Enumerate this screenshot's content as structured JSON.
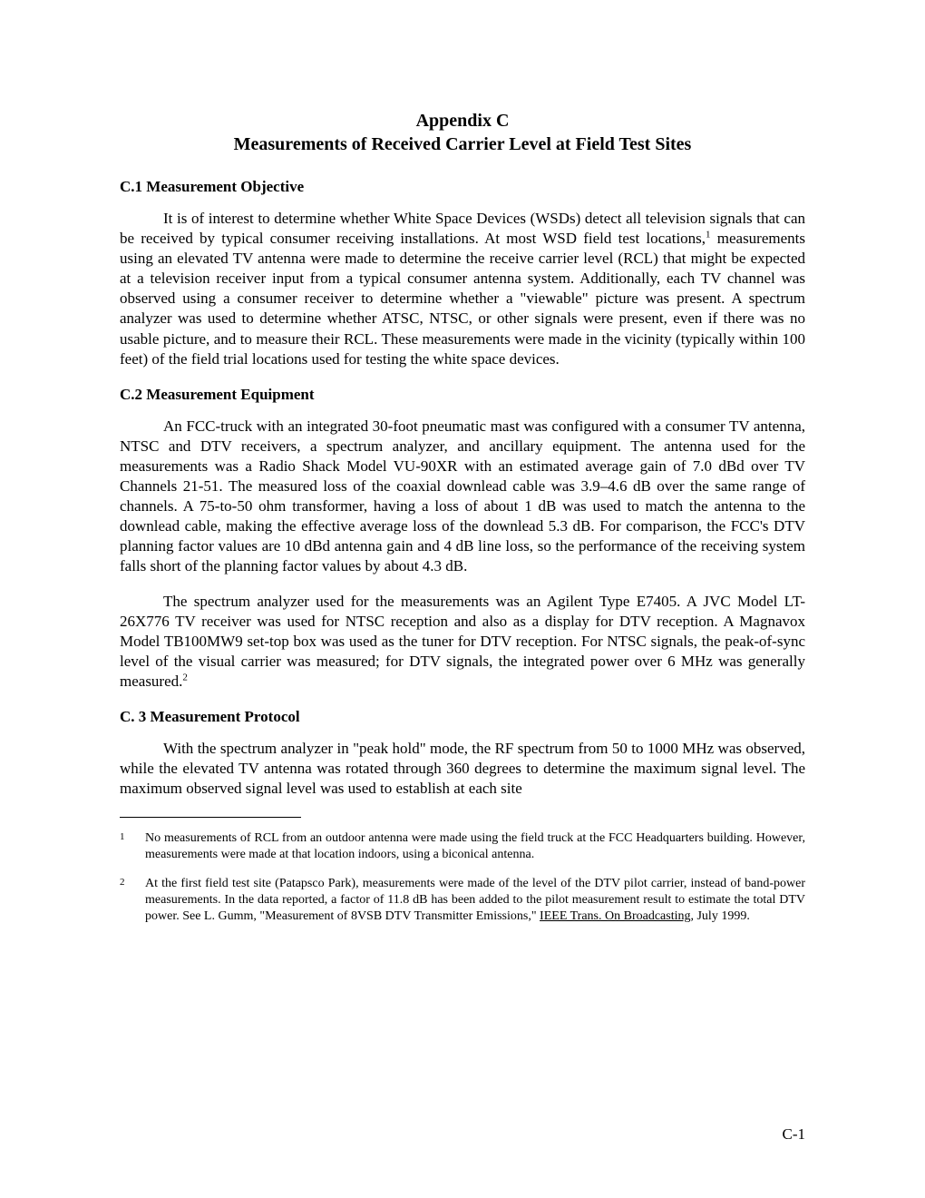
{
  "title": {
    "line1": "Appendix C",
    "line2": "Measurements of Received Carrier Level at Field Test Sites"
  },
  "sections": {
    "c1": {
      "heading": "C.1  Measurement Objective",
      "para1_a": "It is of interest to determine whether White Space Devices (WSDs) detect all television signals that can be received by typical consumer receiving installations.  At most WSD field test locations,",
      "fn1_mark": "1",
      "para1_b": " measurements using an elevated TV antenna were made to determine the receive carrier level (RCL) that might be expected at a television receiver input from a typical consumer antenna system.  Additionally, each TV channel was observed using a consumer receiver to determine whether a \"viewable\" picture was present.  A spectrum analyzer was used to determine whether ATSC, NTSC, or other signals were present, even if there was no usable picture, and to measure their RCL.  These measurements were made in the vicinity (typically within 100 feet) of the field trial locations used for testing the white space devices."
    },
    "c2": {
      "heading": "C.2  Measurement Equipment",
      "para1": "An FCC-truck with an integrated 30-foot pneumatic mast was configured with a consumer TV antenna, NTSC and DTV receivers, a spectrum analyzer, and ancillary equipment.  The antenna used for the measurements was a Radio Shack Model VU-90XR with an estimated average gain of 7.0 dBd over TV Channels 21-51.  The measured loss of the coaxial downlead cable was 3.9–4.6 dB over the same range of channels.  A 75-to-50 ohm transformer, having a loss of about 1 dB was used to match the antenna to the downlead cable, making the effective average loss of the downlead 5.3 dB.  For comparison, the FCC's DTV planning factor values are 10 dBd antenna gain and 4 dB line loss, so the performance of the receiving system falls short of the planning factor values by about 4.3 dB.",
      "para2_a": "The spectrum analyzer used for the measurements was an Agilent Type E7405.  A JVC Model LT-26X776 TV receiver was used for NTSC reception and also as a display for DTV reception.  A Magnavox Model TB100MW9 set-top box was used as the tuner for DTV reception.  For NTSC signals, the peak-of-sync level of the visual carrier was measured; for DTV signals, the integrated power over 6 MHz was generally measured.",
      "fn2_mark": "2"
    },
    "c3": {
      "heading": "C. 3  Measurement Protocol",
      "para1": "With the spectrum analyzer in \"peak hold\" mode, the RF spectrum from 50 to 1000 MHz was observed, while the elevated TV antenna was rotated through 360 degrees to determine the maximum signal level.  The maximum observed signal level was used to establish at each site"
    }
  },
  "footnotes": {
    "fn1": {
      "num": "1",
      "text": "No measurements of RCL from an outdoor antenna were made using the field truck at the FCC Headquarters building.  However, measurements were made at that location indoors, using a biconical antenna."
    },
    "fn2": {
      "num": "2",
      "text_a": "At the first field test site (Patapsco Park), measurements were made of the level of the DTV pilot carrier, instead of band-power measurements.  In the data reported, a factor of 11.8 dB has been added to the pilot measurement result to estimate the total DTV power.  See L. Gumm, \"Measurement of 8VSB DTV Transmitter Emissions,\" ",
      "text_underline": "IEEE Trans. On Broadcasting",
      "text_b": ", July 1999."
    }
  },
  "pageNumber": "C-1",
  "colors": {
    "text": "#000000",
    "background": "#ffffff"
  },
  "typography": {
    "body_fontsize": 17,
    "title_fontsize": 20,
    "footnote_fontsize": 14,
    "font_family": "Times New Roman"
  }
}
